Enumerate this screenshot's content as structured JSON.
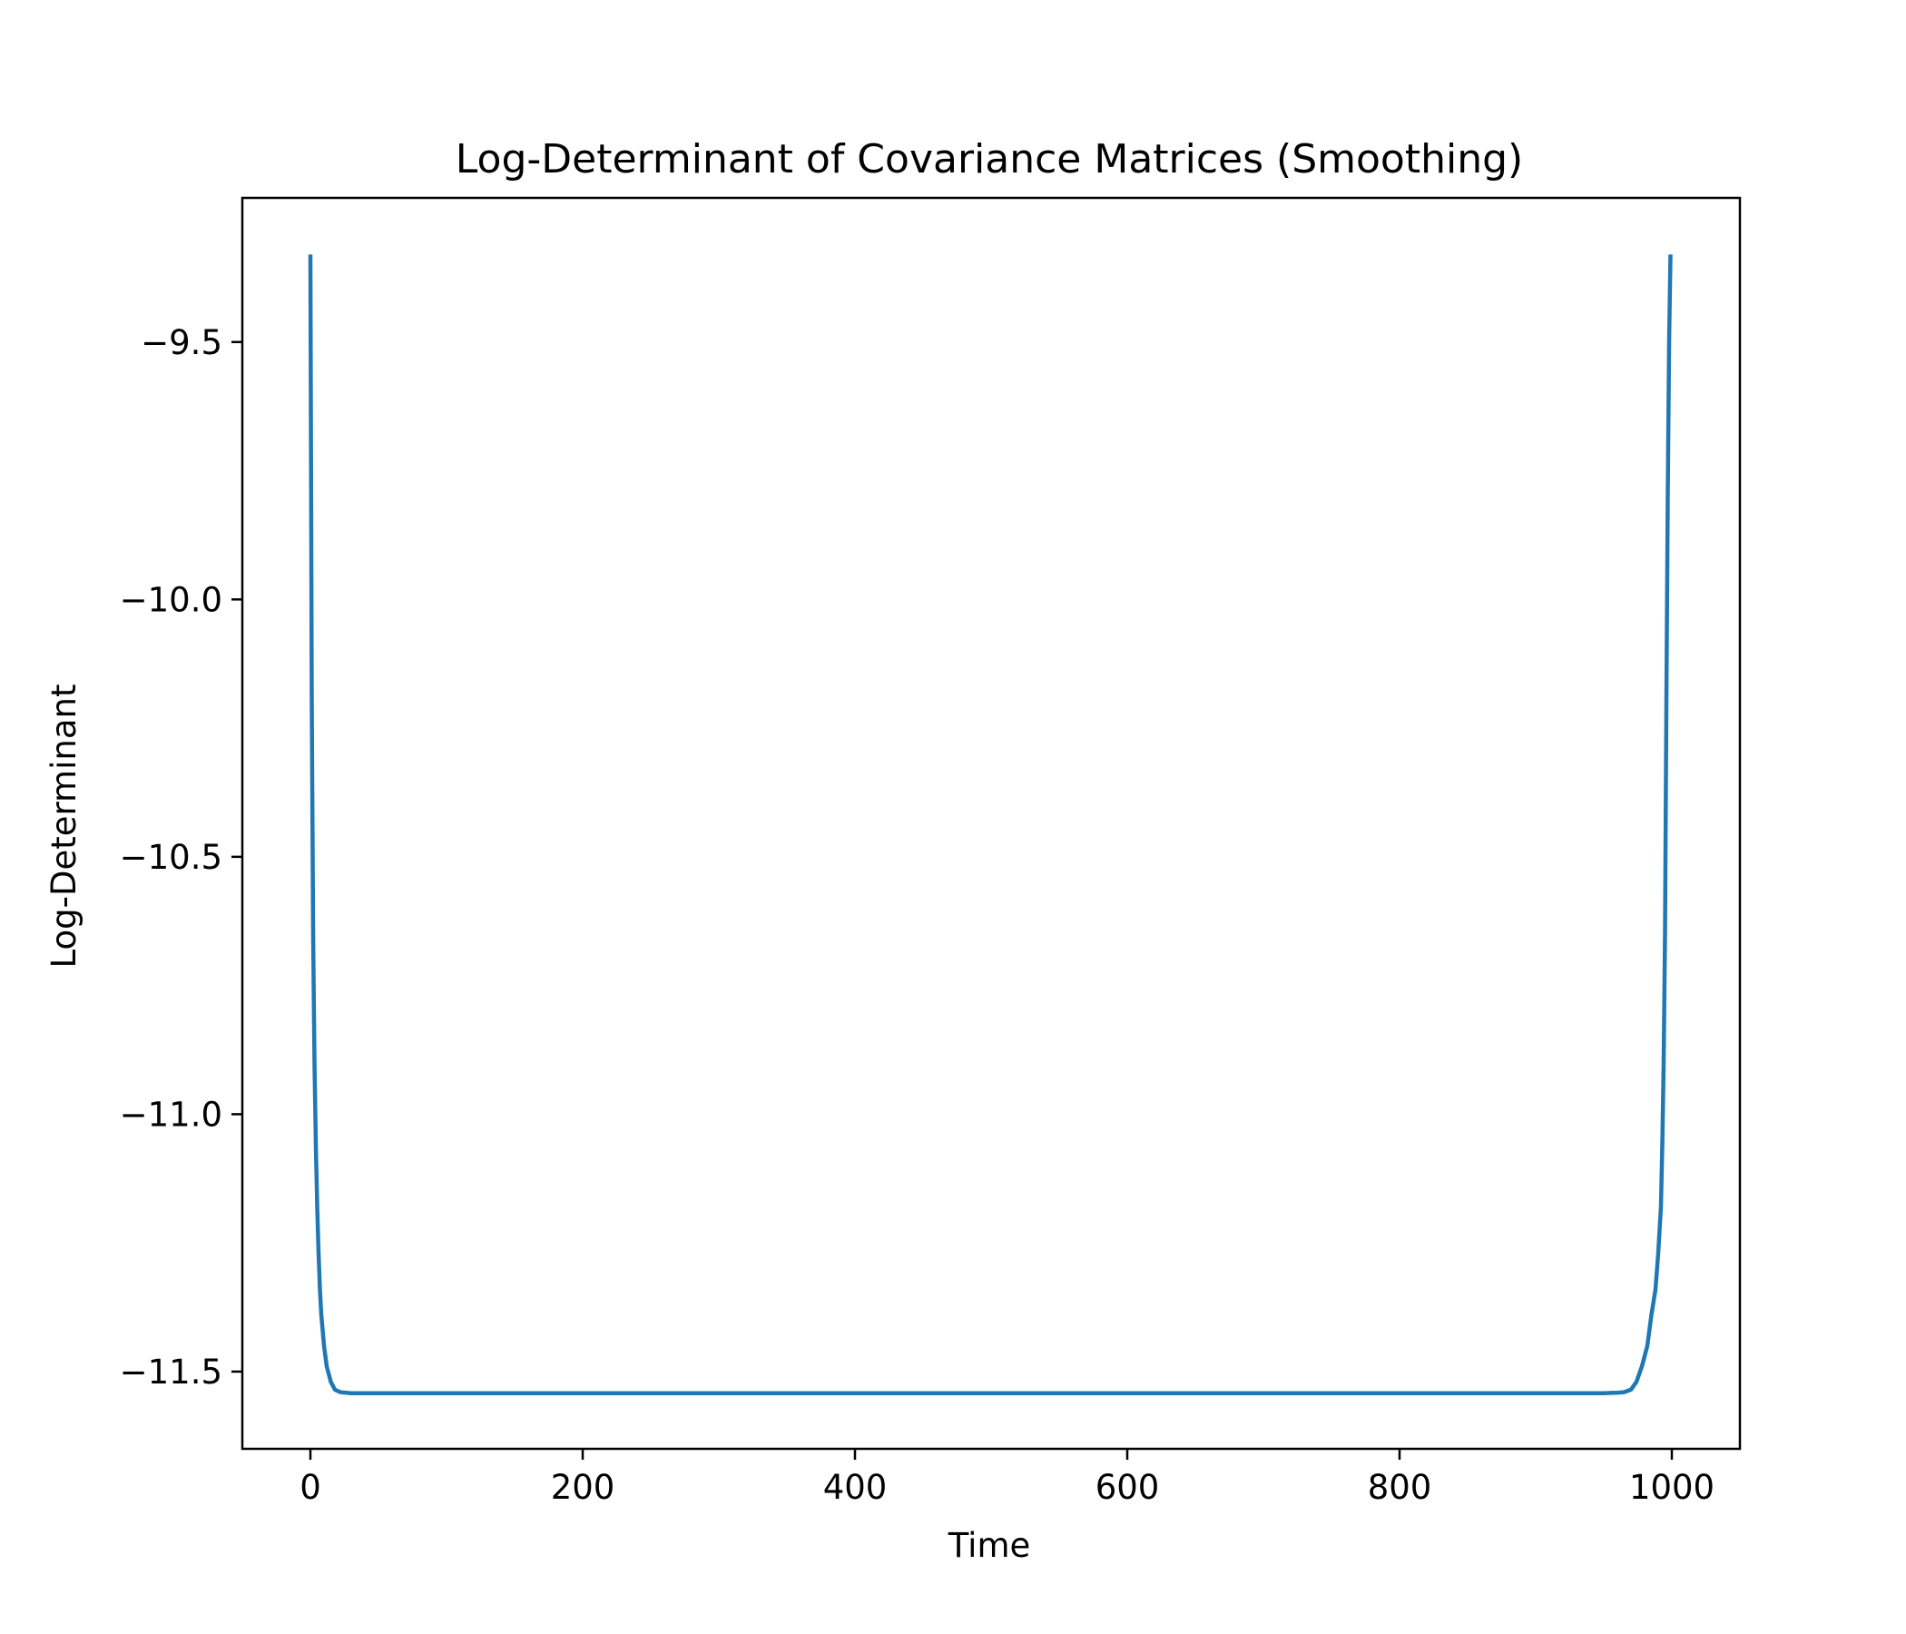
{
  "chart_data": {
    "type": "line",
    "title": "Log-Determinant of Covariance Matrices (Smoothing)",
    "xlabel": "Time",
    "ylabel": "Log-Determinant",
    "xlim": [
      -50,
      1050
    ],
    "ylim": [
      -11.65,
      -9.22
    ],
    "xticks": [
      0,
      200,
      400,
      600,
      800,
      1000
    ],
    "yticks": [
      -9.5,
      -10.0,
      -10.5,
      -11.0,
      -11.5
    ],
    "xtick_labels": [
      "0",
      "200",
      "400",
      "600",
      "800",
      "1000"
    ],
    "ytick_labels": [
      "−9.5",
      "−10.0",
      "−10.5",
      "−11.0",
      "−11.5"
    ],
    "grid": false,
    "series": [
      {
        "color": "#1f77b4",
        "x": [
          0,
          1,
          2,
          3,
          4,
          5,
          6,
          7,
          8,
          10,
          12,
          15,
          18,
          22,
          26,
          30,
          35,
          40,
          50,
          100,
          200,
          300,
          400,
          500,
          600,
          700,
          800,
          900,
          950,
          960,
          965,
          970,
          974,
          978,
          982,
          985,
          988,
          990,
          992,
          993,
          994,
          995,
          996,
          997,
          998,
          999
        ],
        "y": [
          -9.33,
          -10.2,
          -10.65,
          -10.9,
          -11.06,
          -11.18,
          -11.27,
          -11.34,
          -11.39,
          -11.45,
          -11.49,
          -11.52,
          -11.535,
          -11.54,
          -11.541,
          -11.542,
          -11.542,
          -11.542,
          -11.542,
          -11.542,
          -11.542,
          -11.542,
          -11.542,
          -11.542,
          -11.542,
          -11.542,
          -11.542,
          -11.542,
          -11.542,
          -11.541,
          -11.54,
          -11.535,
          -11.52,
          -11.49,
          -11.45,
          -11.39,
          -11.34,
          -11.27,
          -11.18,
          -11.06,
          -10.9,
          -10.65,
          -10.2,
          -9.8,
          -9.5,
          -9.33
        ]
      }
    ]
  }
}
